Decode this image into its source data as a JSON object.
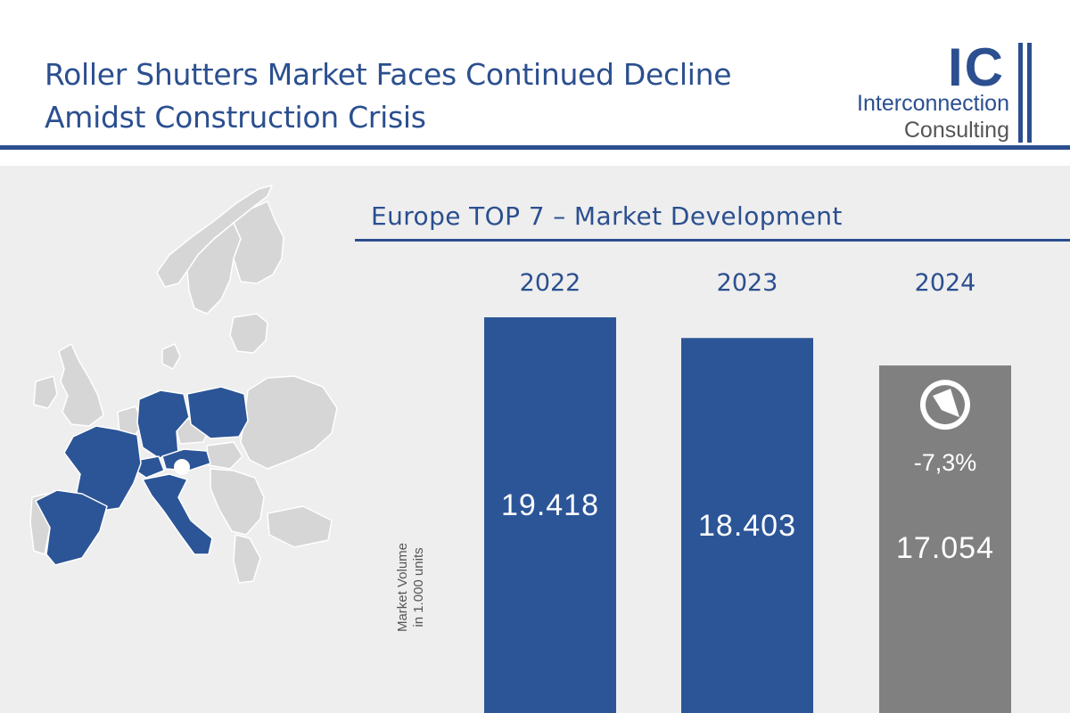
{
  "header": {
    "title_line_1": "Roller Shutters Market Faces Continued Decline",
    "title_line_2": "Amidst Construction Crisis",
    "accent_color": "#2b4f8f"
  },
  "logo": {
    "mark": "IC",
    "word_1": "Interconnection",
    "word_2": "Consulting"
  },
  "map": {
    "highlight_color": "#2b5597",
    "base_color": "#d6d6d6"
  },
  "chart_data": {
    "type": "bar",
    "title": "Europe TOP 7 – Market Development",
    "ylabel_line_1": "Market Volume",
    "ylabel_line_2": "in 1.000 units",
    "categories": [
      "2022",
      "2023",
      "2024"
    ],
    "values": [
      19418,
      18403,
      17054
    ],
    "value_labels": [
      "19.418",
      "18.403",
      "17.054"
    ],
    "bar_colors": [
      "#2b5597",
      "#2b5597",
      "#808080"
    ],
    "ylim": [
      0,
      22000
    ],
    "grid": false,
    "annotation": {
      "category": "2024",
      "text": "-7,3%",
      "icon": "down-arrow-circle-icon"
    }
  }
}
